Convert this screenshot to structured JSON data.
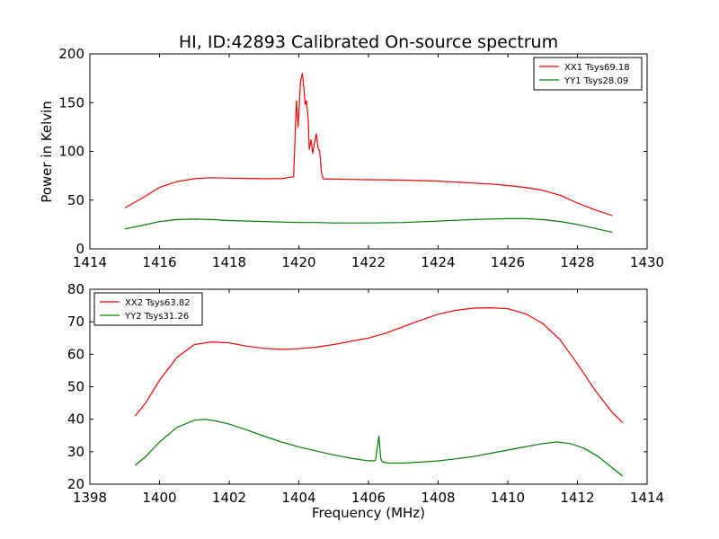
{
  "figure": {
    "title": "HI, ID:42893 Calibrated On-source spectrum",
    "xlabel": "Frequency (MHz)",
    "ylabel": "Power in Kelvin"
  },
  "chart_data": [
    {
      "type": "line",
      "ylabel": "Power in Kelvin",
      "xlim": [
        1414,
        1430
      ],
      "ylim": [
        0,
        200
      ],
      "xticks": [
        1414,
        1416,
        1418,
        1420,
        1422,
        1424,
        1426,
        1428,
        1430
      ],
      "yticks": [
        0,
        50,
        100,
        150,
        200
      ],
      "grid": false,
      "legend_position": "top-right",
      "series": [
        {
          "name": "XX1 Tsys69.18",
          "color": "#ff0000",
          "x": [
            1415.0,
            1415.5,
            1416.0,
            1416.5,
            1417.0,
            1417.5,
            1418.0,
            1418.5,
            1419.0,
            1419.5,
            1419.85,
            1419.93,
            1419.98,
            1420.05,
            1420.1,
            1420.15,
            1420.18,
            1420.22,
            1420.27,
            1420.3,
            1420.35,
            1420.4,
            1420.45,
            1420.5,
            1420.55,
            1420.6,
            1420.65,
            1420.7,
            1420.8,
            1421.0,
            1422.0,
            1423.0,
            1424.0,
            1425.0,
            1425.5,
            1426.0,
            1426.5,
            1427.0,
            1427.5,
            1428.0,
            1428.5,
            1429.0
          ],
          "y": [
            42,
            52,
            63,
            69,
            72,
            73,
            72.5,
            72.3,
            72,
            72,
            74,
            152,
            125,
            172,
            180,
            163,
            148,
            152,
            132,
            102,
            112,
            98,
            108,
            118,
            104,
            100,
            78,
            72,
            71.5,
            71.5,
            71,
            70.5,
            69.5,
            67.5,
            66.5,
            65,
            63,
            60,
            55,
            47,
            40,
            34
          ]
        },
        {
          "name": "YY1 Tsys28.09",
          "color": "#008000",
          "x": [
            1415.0,
            1415.5,
            1416.0,
            1416.5,
            1417.0,
            1417.5,
            1418.0,
            1419.0,
            1420.0,
            1420.5,
            1421.0,
            1422.0,
            1423.0,
            1424.0,
            1425.0,
            1426.0,
            1426.5,
            1427.0,
            1427.5,
            1428.0,
            1428.5,
            1429.0
          ],
          "y": [
            20.5,
            24,
            28,
            30,
            30.5,
            30,
            29,
            28,
            27,
            27,
            26.5,
            26.5,
            27,
            28.5,
            30,
            31,
            31,
            30,
            28,
            25,
            21,
            17
          ]
        }
      ]
    },
    {
      "type": "line",
      "xlabel": "Frequency (MHz)",
      "xlim": [
        1398,
        1414
      ],
      "ylim": [
        20,
        80
      ],
      "xticks": [
        1398,
        1400,
        1402,
        1404,
        1406,
        1408,
        1410,
        1412,
        1414
      ],
      "yticks": [
        20,
        30,
        40,
        50,
        60,
        70,
        80
      ],
      "grid": false,
      "legend_position": "top-left",
      "series": [
        {
          "name": "XX2 Tsys63.82",
          "color": "#ff0000",
          "x": [
            1399.3,
            1399.6,
            1400.0,
            1400.5,
            1401.0,
            1401.5,
            1402.0,
            1402.5,
            1403.0,
            1403.5,
            1404.0,
            1404.5,
            1405.0,
            1405.5,
            1406.0,
            1406.5,
            1407.0,
            1407.5,
            1408.0,
            1408.5,
            1409.0,
            1409.5,
            1410.0,
            1410.5,
            1411.0,
            1411.5,
            1412.0,
            1412.5,
            1413.0,
            1413.3
          ],
          "y": [
            41,
            45,
            52,
            59,
            63,
            63.8,
            63.5,
            62.5,
            61.8,
            61.5,
            61.7,
            62.2,
            63,
            64,
            65,
            66.5,
            68.5,
            70.5,
            72.3,
            73.5,
            74.2,
            74.3,
            74,
            72.5,
            69.5,
            64.5,
            57,
            49,
            42,
            39
          ]
        },
        {
          "name": "YY2 Tsys31.26",
          "color": "#008000",
          "x": [
            1399.3,
            1399.6,
            1400.0,
            1400.5,
            1401.0,
            1401.3,
            1401.6,
            1402.0,
            1402.5,
            1403.0,
            1403.5,
            1404.0,
            1404.5,
            1405.0,
            1405.5,
            1406.0,
            1406.2,
            1406.3,
            1406.35,
            1406.4,
            1406.6,
            1407.0,
            1407.5,
            1408.0,
            1408.5,
            1409.0,
            1409.5,
            1410.0,
            1410.5,
            1411.0,
            1411.4,
            1411.8,
            1412.2,
            1412.6,
            1413.0,
            1413.3
          ],
          "y": [
            25.8,
            28.5,
            33,
            37.5,
            39.7,
            40,
            39.5,
            38.5,
            36.7,
            34.8,
            33,
            31.5,
            30.2,
            29,
            28,
            27.2,
            27.3,
            34.8,
            28,
            26.8,
            26.5,
            26.5,
            26.8,
            27.2,
            27.8,
            28.5,
            29.5,
            30.5,
            31.5,
            32.5,
            33,
            32.5,
            31,
            28.5,
            25,
            22.5
          ]
        }
      ]
    }
  ]
}
